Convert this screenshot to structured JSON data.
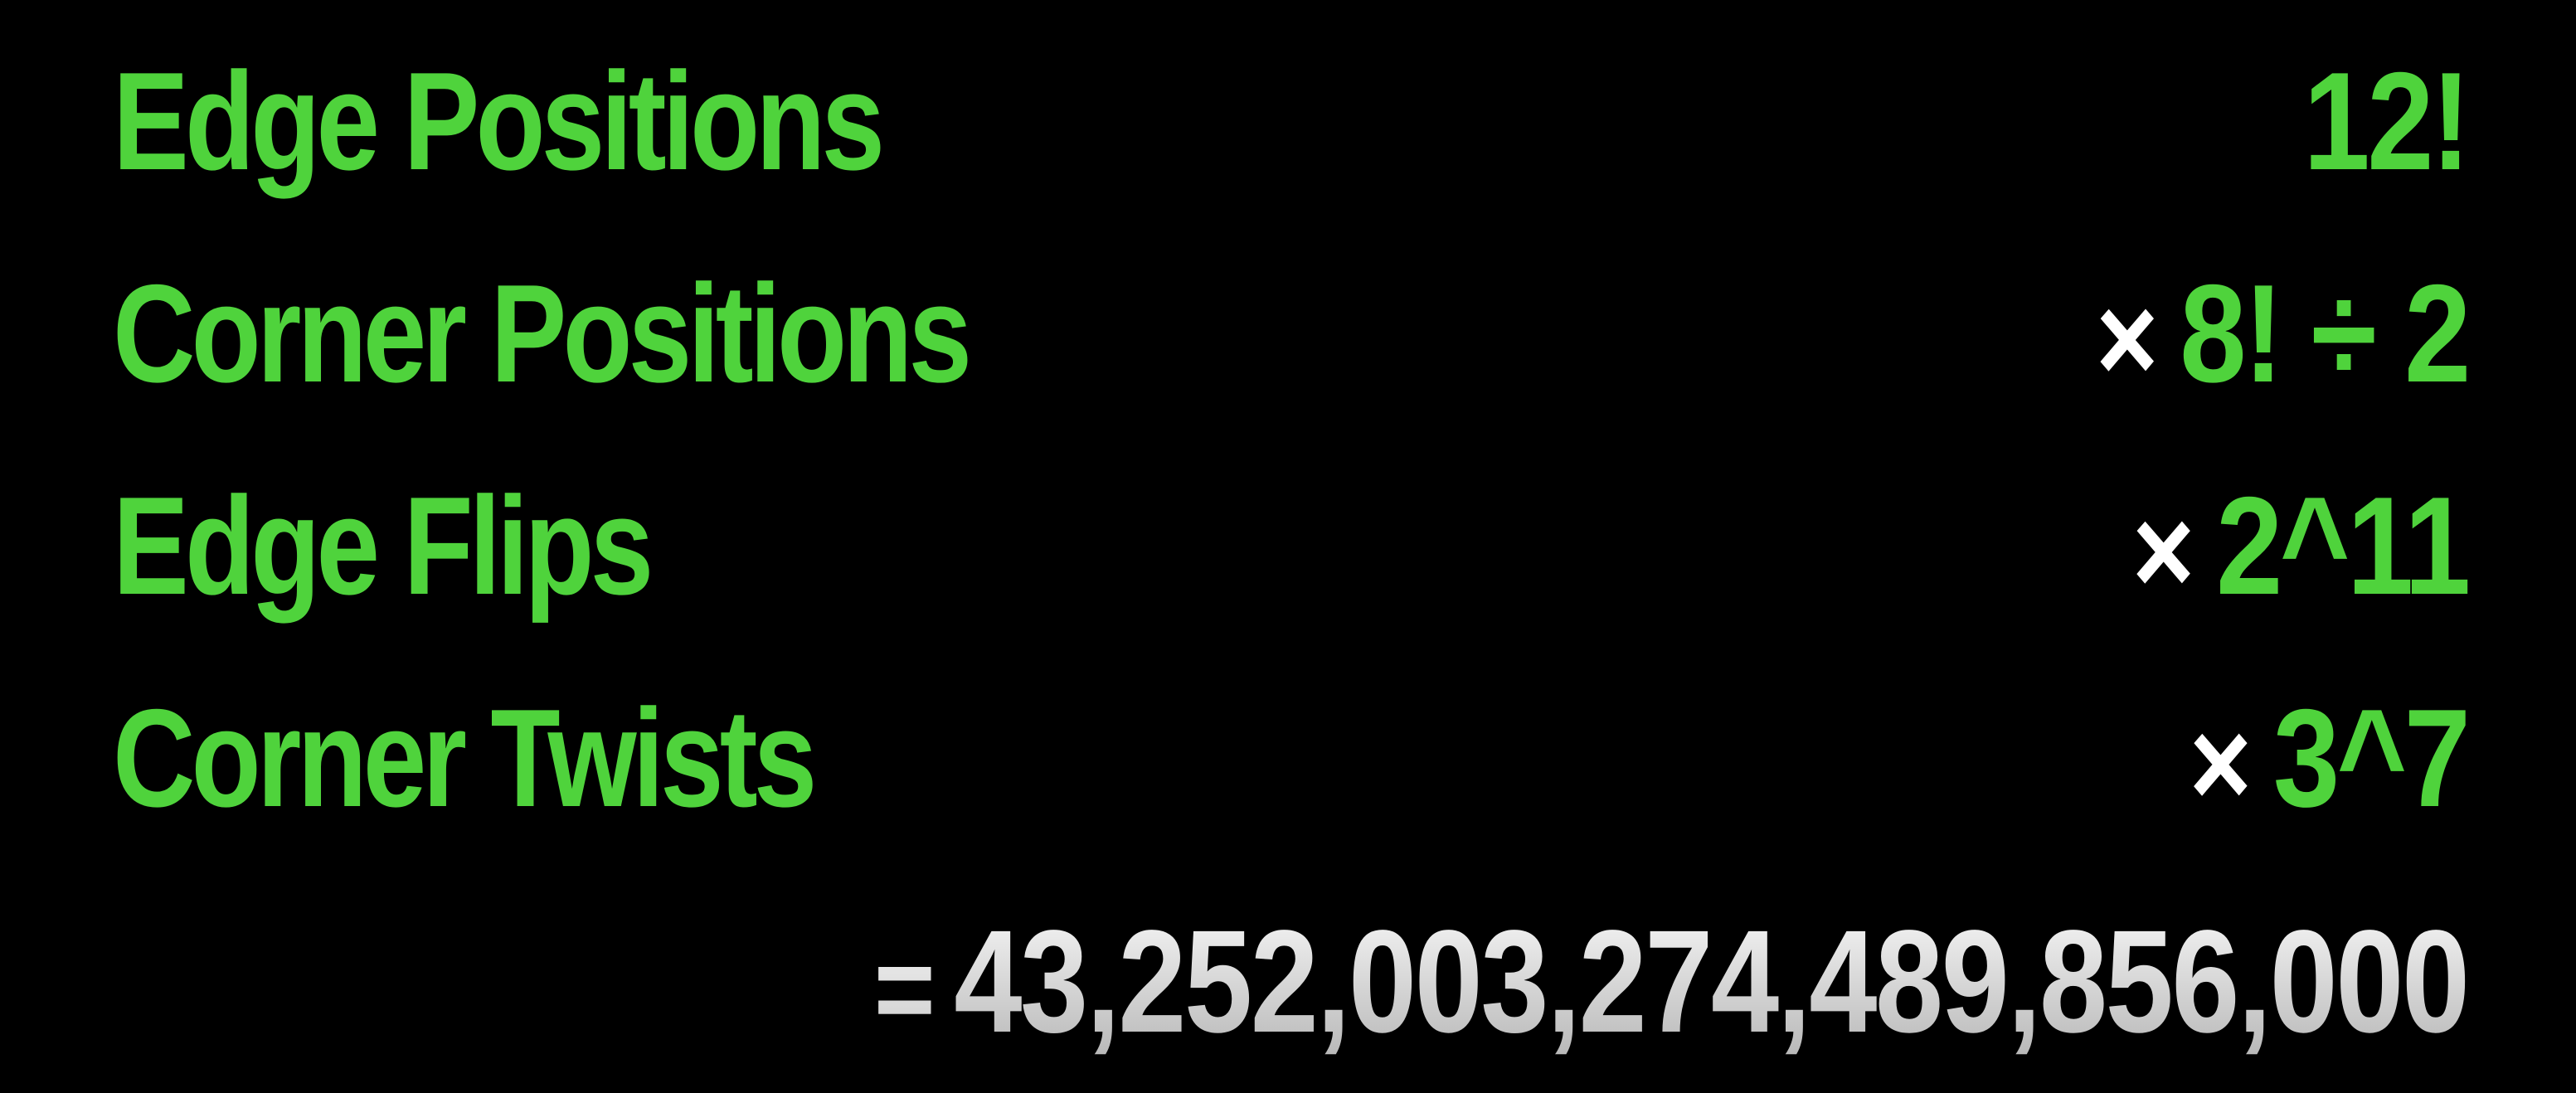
{
  "rows": [
    {
      "label": "Edge Positions",
      "operator": "",
      "value": "12!"
    },
    {
      "label": "Corner Positions",
      "operator": "×",
      "value": "8! ÷ 2"
    },
    {
      "label": "Edge Flips",
      "operator": "×",
      "value": "2^11"
    },
    {
      "label": "Corner Twists",
      "operator": "×",
      "value": "3^7"
    }
  ],
  "total": {
    "operator": "=",
    "value": "43,252,003,274,489,856,000"
  },
  "colors": {
    "background": "#000000",
    "accent_green": "#4fd33c",
    "operator_white": "#ffffff",
    "total_gray": "#dcdcdc"
  }
}
